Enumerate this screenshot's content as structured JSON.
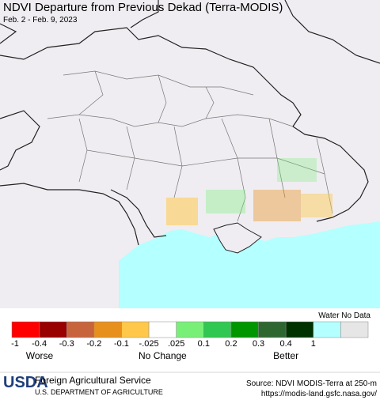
{
  "header": {
    "title": "NDVI Departure from Previous Dekad (Terra-MODIS)",
    "subtitle": "Feb. 2 - Feb. 9, 2023"
  },
  "legend": {
    "colors": [
      "#ff0000",
      "#990000",
      "#c8643c",
      "#e8901e",
      "#ffc84a",
      "#ffffff",
      "#78f078",
      "#30c850",
      "#009600",
      "#2e6630",
      "#003200",
      "#b4ffff",
      "#e6e6e6"
    ],
    "special_label": "Water No Data",
    "ticks": [
      "-1",
      "-0.4",
      "-0.3",
      "-0.2",
      "-0.1",
      "-.025",
      ".025",
      "0.1",
      "0.2",
      "0.3",
      "0.4",
      "1"
    ],
    "captions": [
      "Worse",
      "No Change",
      "Better"
    ]
  },
  "footer": {
    "logo": "USDA",
    "agency": "Foreign Agricultural Service",
    "department": "U.S. DEPARTMENT OF AGRICULTURE",
    "source": "Source: NDVI MODIS-Terra at 250-m",
    "url": "https://modis-land.gsfc.nasa.gov/"
  }
}
